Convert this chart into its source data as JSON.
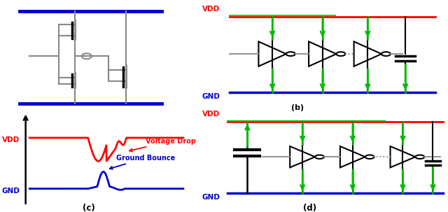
{
  "bg_color": "#ffffff",
  "vdd_color": "#ff0000",
  "gnd_color": "#0000cc",
  "gray_color": "#888888",
  "green_color": "#00bb00",
  "black_color": "#000000",
  "panel_b_label": "(b)",
  "panel_c_label": "(c)",
  "panel_d_label": "(d)",
  "vdd_label": "VDD",
  "gnd_label": "GND",
  "voltage_drop_label": "Voltage Drop",
  "ground_bounce_label": "Ground Bounce"
}
